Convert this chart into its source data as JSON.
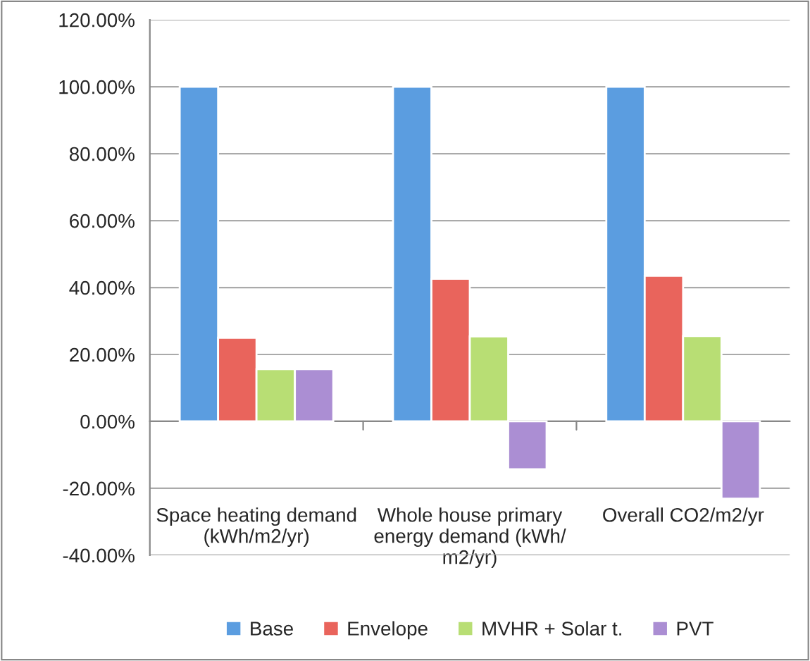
{
  "chart_data": {
    "type": "bar",
    "categories": [
      "Space heating demand\n(kWh/m2/yr)",
      "Whole house primary\nenergy demand (kWh/\nm2/yr)",
      "Overall CO2/m2/yr"
    ],
    "series": [
      {
        "name": "Base",
        "color": "#5b9de0",
        "values": [
          100,
          100,
          100
        ]
      },
      {
        "name": "Envelope",
        "color": "#e9645c",
        "values": [
          25,
          42.6,
          43.5
        ]
      },
      {
        "name": "MVHR + Solar t.",
        "color": "#b8de74",
        "values": [
          15.6,
          25.4,
          25.5
        ]
      },
      {
        "name": "PVT",
        "color": "#ab8ed3",
        "values": [
          15.6,
          -14.3,
          -23.1
        ]
      }
    ],
    "ylim": [
      -40,
      120
    ],
    "yticks": [
      {
        "value": -40,
        "label": "-40.00%"
      },
      {
        "value": -20,
        "label": "-20.00%"
      },
      {
        "value": 0,
        "label": "0.00%"
      },
      {
        "value": 20,
        "label": "20.00%"
      },
      {
        "value": 40,
        "label": "40.00%"
      },
      {
        "value": 60,
        "label": "60.00%"
      },
      {
        "value": 80,
        "label": "80.00%"
      },
      {
        "value": 100,
        "label": "100.00%"
      },
      {
        "value": 120,
        "label": "120.00%"
      }
    ],
    "grid": "y",
    "legend": "bottom"
  }
}
